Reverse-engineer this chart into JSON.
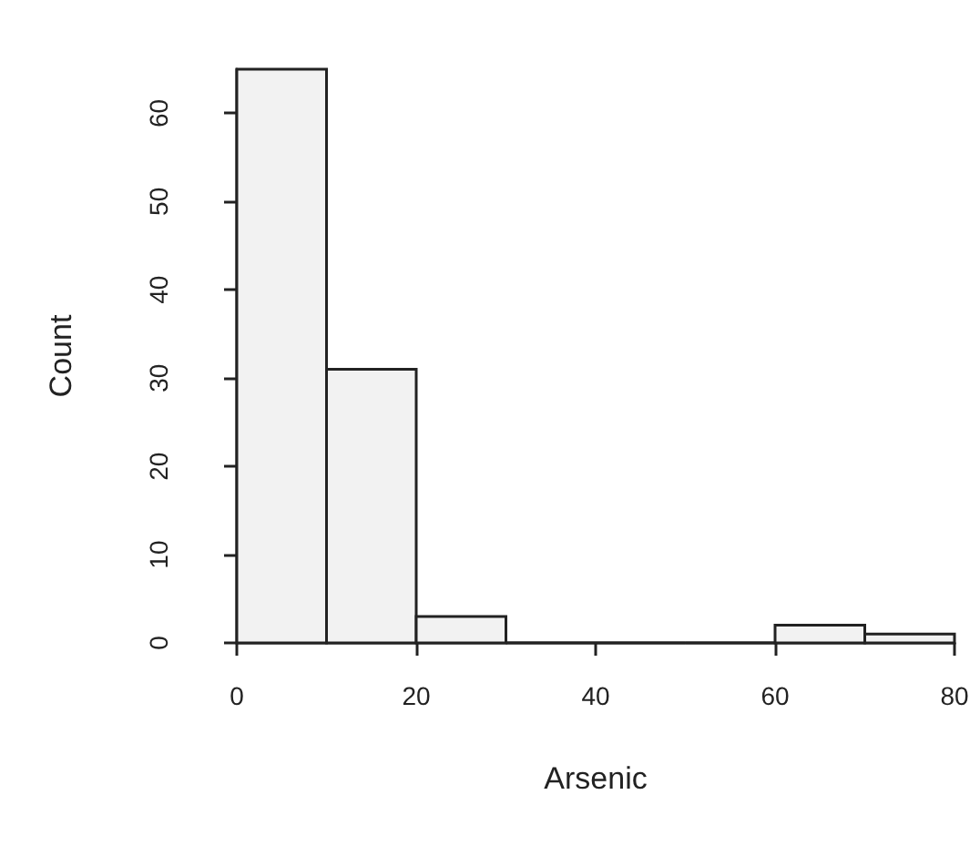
{
  "chart_data": {
    "type": "histogram",
    "xlabel": "Arsenic",
    "ylabel": "Count",
    "bins": [
      0,
      10,
      20,
      30,
      40,
      50,
      60,
      70,
      80
    ],
    "values": [
      65,
      31,
      3,
      0,
      0,
      0,
      2,
      1
    ],
    "color": "#f2f2f2",
    "xlim": [
      0,
      80
    ],
    "xticks": [
      0,
      20,
      40,
      60,
      80
    ],
    "ylim": [
      0,
      65
    ],
    "yticks": [
      0,
      10,
      20,
      30,
      40,
      50,
      60
    ],
    "grid": false
  }
}
